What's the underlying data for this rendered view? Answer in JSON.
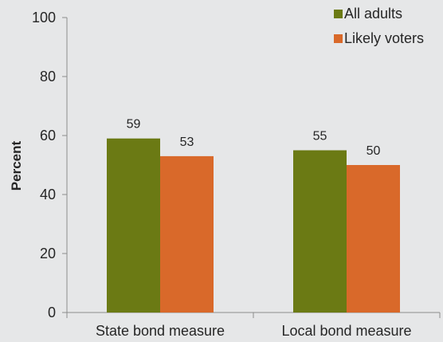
{
  "chart_data": {
    "type": "bar",
    "categories": [
      "State bond measure",
      "Local bond measure"
    ],
    "series": [
      {
        "name": "All adults",
        "values": [
          59,
          55
        ],
        "color": "#6b7a14"
      },
      {
        "name": "Likely voters",
        "values": [
          53,
          50
        ],
        "color": "#d9692a"
      }
    ],
    "ylabel": "Percent",
    "ylim": [
      0,
      100
    ],
    "yticks": [
      0,
      20,
      40,
      60,
      80,
      100
    ],
    "legend": "top-right",
    "grid": false
  }
}
